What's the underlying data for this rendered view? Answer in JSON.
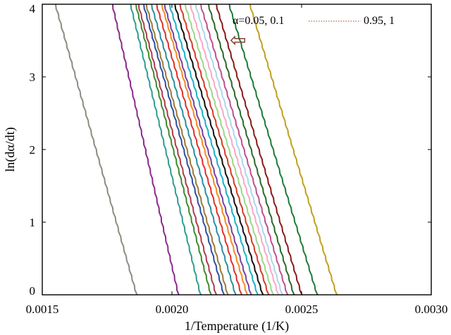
{
  "chart_data": {
    "type": "line",
    "title": "",
    "xlabel": "1/Temperature (1/K)",
    "ylabel": "ln(dα/dt)",
    "xlim": [
      0.0015,
      0.003
    ],
    "ylim": [
      0,
      4
    ],
    "xticks": [
      "0.0015",
      "0.0020",
      "0.0025",
      "0.0030"
    ],
    "yticks": [
      "0",
      "1",
      "2",
      "3",
      "4"
    ],
    "grid": false,
    "annotation": {
      "text_start": "α=0.05, 0.1",
      "text_end": "0.95, 1",
      "arrow": "⇦"
    },
    "series": [
      {
        "color": "#8c8c80",
        "x": [
          0.00155,
          0.001864
        ],
        "y": [
          4,
          0
        ]
      },
      {
        "color": "#8a2a8a",
        "x": [
          0.00177,
          0.002025
        ],
        "y": [
          4,
          0
        ]
      },
      {
        "color": "#2e9e8e",
        "x": [
          0.00184,
          0.00211
        ],
        "y": [
          4,
          0
        ]
      },
      {
        "color": "#3c8c2c",
        "x": [
          0.00186,
          0.00215
        ],
        "y": [
          4,
          0
        ]
      },
      {
        "color": "#b03a50",
        "x": [
          0.00187,
          0.00217
        ],
        "y": [
          4,
          0
        ]
      },
      {
        "color": "#2f4fa0",
        "x": [
          0.00189,
          0.0022
        ],
        "y": [
          4,
          0
        ]
      },
      {
        "color": "#9a7a3a",
        "x": [
          0.0019,
          0.002215
        ],
        "y": [
          4,
          0
        ]
      },
      {
        "color": "#2a8fa0",
        "x": [
          0.00192,
          0.002245
        ],
        "y": [
          4,
          0
        ]
      },
      {
        "color": "#e0302a",
        "x": [
          0.00194,
          0.002268
        ],
        "y": [
          4,
          0
        ]
      },
      {
        "color": "#f28c1e",
        "x": [
          0.00196,
          0.00229
        ],
        "y": [
          4,
          0
        ]
      },
      {
        "color": "#7b3fa0",
        "x": [
          0.00197,
          0.002305
        ],
        "y": [
          4,
          0
        ]
      },
      {
        "color": "#1ab0c8",
        "x": [
          0.00199,
          0.00233
        ],
        "y": [
          4,
          0
        ]
      },
      {
        "color": "#111111",
        "x": [
          0.00201,
          0.00235
        ],
        "y": [
          4,
          0
        ]
      },
      {
        "color": "#d83a2a",
        "x": [
          0.00203,
          0.002372
        ],
        "y": [
          4,
          0
        ]
      },
      {
        "color": "#9ad88a",
        "x": [
          0.00205,
          0.00239
        ],
        "y": [
          4,
          0
        ]
      },
      {
        "color": "#f7a8c8",
        "x": [
          0.00207,
          0.00241
        ],
        "y": [
          4,
          0
        ]
      },
      {
        "color": "#a8d8ec",
        "x": [
          0.00209,
          0.002425
        ],
        "y": [
          4,
          0
        ]
      },
      {
        "color": "#c0508a",
        "x": [
          0.00211,
          0.002445
        ],
        "y": [
          4,
          0
        ]
      },
      {
        "color": "#2a6a2a",
        "x": [
          0.00214,
          0.00247
        ],
        "y": [
          4,
          0
        ]
      },
      {
        "color": "#8a1a1a",
        "x": [
          0.00217,
          0.0025
        ],
        "y": [
          4,
          0
        ]
      },
      {
        "color": "#1e7a3a",
        "x": [
          0.00222,
          0.00256
        ],
        "y": [
          4,
          0
        ]
      },
      {
        "color": "#c0a020",
        "x": [
          0.0023,
          0.002635
        ],
        "y": [
          4,
          0
        ]
      }
    ]
  }
}
